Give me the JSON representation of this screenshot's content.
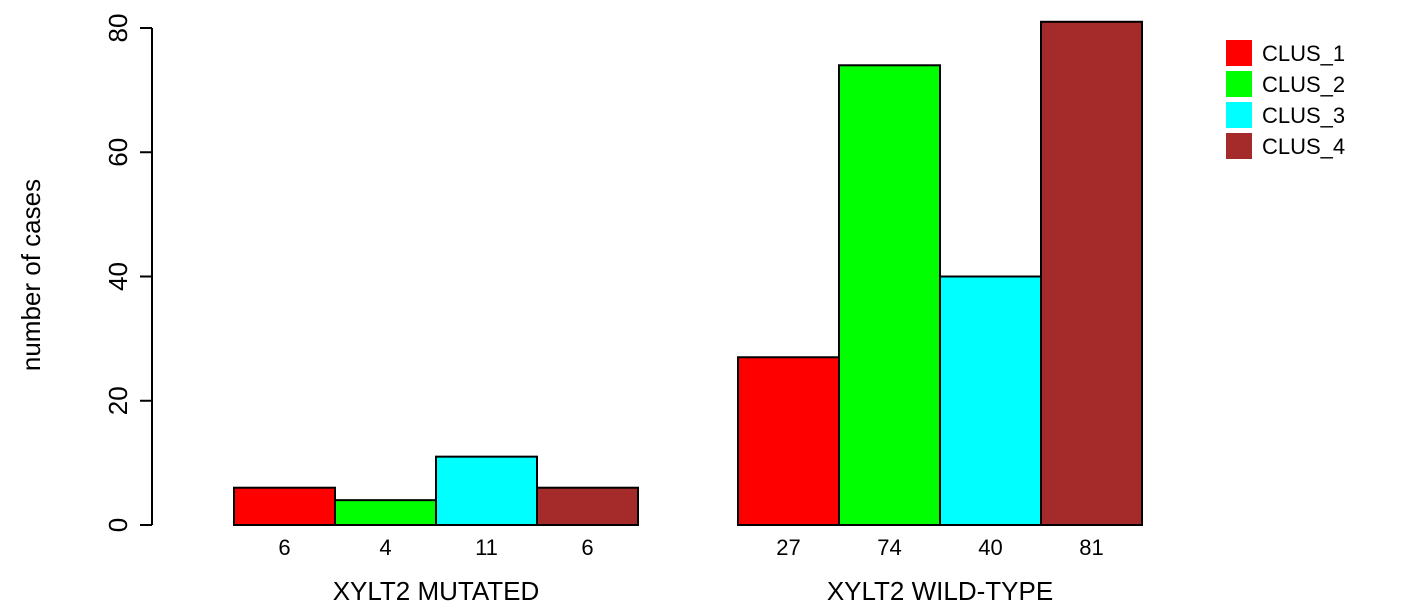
{
  "chart_data": {
    "type": "bar",
    "ylabel": "number of cases",
    "ylim": [
      0,
      80
    ],
    "yticks": [
      0,
      20,
      40,
      60,
      80
    ],
    "legend_position": "top-right",
    "groups": [
      {
        "label": "XYLT2 MUTATED",
        "values": [
          6,
          4,
          11,
          6
        ],
        "count_labels": [
          "6",
          "4",
          "11",
          "6"
        ]
      },
      {
        "label": "XYLT2 WILD-TYPE",
        "values": [
          27,
          74,
          40,
          81
        ],
        "count_labels": [
          "27",
          "74",
          "40",
          "81"
        ]
      }
    ],
    "series": [
      {
        "name": "CLUS_1",
        "color": "#ff0000"
      },
      {
        "name": "CLUS_2",
        "color": "#00ff00"
      },
      {
        "name": "CLUS_3",
        "color": "#00ffff"
      },
      {
        "name": "CLUS_4",
        "color": "#a52a2a"
      }
    ]
  }
}
